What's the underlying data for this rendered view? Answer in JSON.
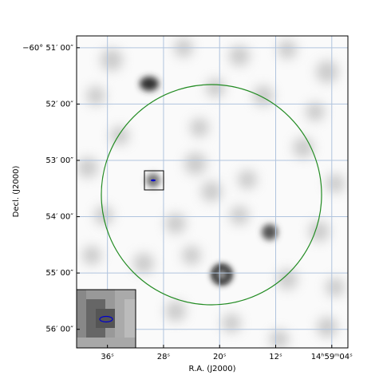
{
  "chart_data": {
    "type": "image",
    "xlabel": "R.A. (J2000)",
    "ylabel": "Decl. (J2000)",
    "xlim": [
      40.4,
      1.7
    ],
    "xticks": [
      {
        "value": 36,
        "label": "36ˢ"
      },
      {
        "value": 28,
        "label": "28ˢ"
      },
      {
        "value": 20,
        "label": "20ˢ"
      },
      {
        "value": 12,
        "label": "12ˢ"
      },
      {
        "value": 4,
        "label": "14ʰ59ᵐ04ˢ"
      }
    ],
    "ylim": [
      56.33,
      50.79
    ],
    "yticks": [
      {
        "value": 51,
        "label": "−60° 51′ 00″"
      },
      {
        "value": 52,
        "label": "52′ 00″"
      },
      {
        "value": 53,
        "label": "53′ 00″"
      },
      {
        "value": 54,
        "label": "54′ 00″"
      },
      {
        "value": 55,
        "label": "55′ 00″"
      },
      {
        "value": 56,
        "label": "56′ 00″"
      }
    ],
    "grid": true,
    "grid_color": "#b0c4de"
  }
}
